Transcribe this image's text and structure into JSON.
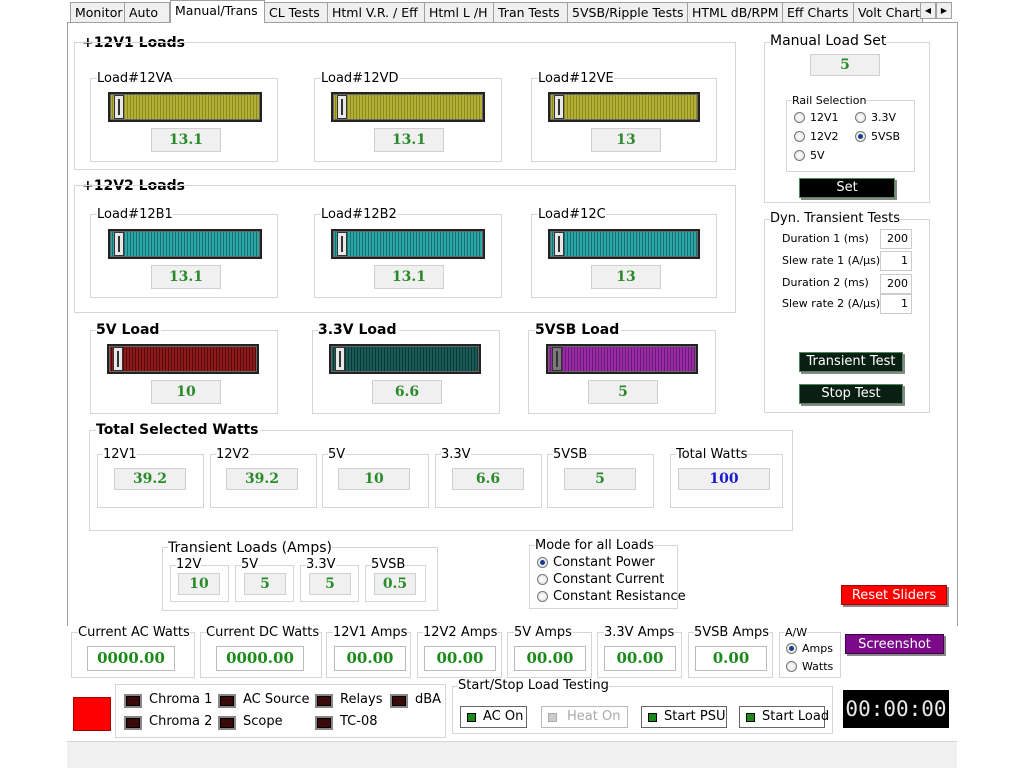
{
  "tabs": [
    "Monitor",
    "Auto",
    "Manual/Trans",
    "CL Tests",
    "Html V.R. / Eff",
    "Html L /H",
    "Tran Tests",
    "5VSB/Ripple Tests",
    "HTML dB/RPM",
    "Eff Charts",
    "Volt Chart"
  ],
  "active_tab": "Manual/Trans",
  "loads12v1": {
    "title": "+12V1 Loads",
    "sliders": [
      {
        "label": "Load#12VA",
        "value": "13.1"
      },
      {
        "label": "Load#12VD",
        "value": "13.1"
      },
      {
        "label": "Load#12VE",
        "value": "13"
      }
    ]
  },
  "loads12v2": {
    "title": "+12V2 Loads",
    "sliders": [
      {
        "label": "Load#12B1",
        "value": "13.1"
      },
      {
        "label": "Load#12B2",
        "value": "13.1"
      },
      {
        "label": "Load#12C",
        "value": "13"
      }
    ]
  },
  "minor": [
    {
      "label": "5V Load",
      "value": "10"
    },
    {
      "label": "3.3V Load",
      "value": "6.6"
    },
    {
      "label": "5VSB Load",
      "value": "5"
    }
  ],
  "watts": {
    "title": "Total Selected Watts",
    "items": [
      {
        "label": "12V1",
        "value": "39.2"
      },
      {
        "label": "12V2",
        "value": "39.2"
      },
      {
        "label": "5V",
        "value": "10"
      },
      {
        "label": "3.3V",
        "value": "6.6"
      },
      {
        "label": "5VSB",
        "value": "5"
      },
      {
        "label": "Total Watts",
        "value": "100"
      }
    ]
  },
  "transient": {
    "title": "Transient Loads (Amps)",
    "items": [
      {
        "label": "12V",
        "value": "10"
      },
      {
        "label": "5V",
        "value": "5"
      },
      {
        "label": "3.3V",
        "value": "5"
      },
      {
        "label": "5VSB",
        "value": "0.5"
      }
    ]
  },
  "mode": {
    "title": "Mode for all Loads",
    "options": [
      "Constant Power",
      "Constant Current",
      "Constant Resistance"
    ],
    "selected": "Constant Power"
  },
  "manual_set": {
    "title": "Manual Load Set",
    "value": "5",
    "rail_title": "Rail Selection",
    "rails": [
      "12V1",
      "3.3V",
      "12V2",
      "5VSB",
      "5V"
    ],
    "selected": "5VSB",
    "set_label": "Set"
  },
  "dyn": {
    "title": "Dyn. Transient Tests",
    "rows": [
      {
        "label": "Duration 1 (ms)",
        "value": "200"
      },
      {
        "label": "Slew rate 1 (A/µs)",
        "value": "1"
      },
      {
        "label": "Duration 2 (ms)",
        "value": "200"
      },
      {
        "label": "Slew rate 2 (A/µs)",
        "value": "1"
      }
    ],
    "transient_label": "Transient Test",
    "stop_label": "Stop Test"
  },
  "reset_label": "Reset Sliders",
  "readouts": [
    {
      "label": "Current AC Watts",
      "value": "0000.00"
    },
    {
      "label": "Current DC Watts",
      "value": "0000.00"
    },
    {
      "label": "12V1 Amps",
      "value": "00.00"
    },
    {
      "label": "12V2 Amps",
      "value": "00.00"
    },
    {
      "label": "5V Amps",
      "value": "00.00"
    },
    {
      "label": "3.3V Amps",
      "value": "00.00"
    },
    {
      "label": "5VSB Amps",
      "value": "0.00"
    }
  ],
  "aw": {
    "title": "A/W",
    "options": [
      "Amps",
      "Watts"
    ],
    "selected": "Amps"
  },
  "screenshot_label": "Screenshot",
  "devices": [
    "Chroma 1",
    "AC Source",
    "Relays",
    "dBA",
    "Chroma 2",
    "Scope",
    "TC-08"
  ],
  "startstop": {
    "title": "Start/Stop Load Testing",
    "buttons": [
      {
        "label": "AC On",
        "enabled": true
      },
      {
        "label": "Heat On",
        "enabled": false
      },
      {
        "label": "Start PSU",
        "enabled": true
      },
      {
        "label": "Start Load",
        "enabled": true
      }
    ]
  },
  "timer": "00:00:00",
  "colors": {
    "yellow": "#b5b035",
    "teal": "#2aa6a6",
    "red": "#8b1a1a",
    "darkteal": "#1a5a55",
    "purple": "#9a2aa6",
    "status_red": "#ff0000"
  }
}
